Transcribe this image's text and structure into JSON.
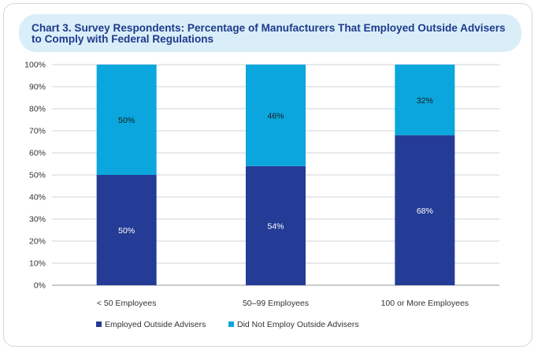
{
  "chart_data": {
    "type": "bar",
    "stacked": true,
    "title": "Chart 3. Survey Respondents: Percentage of Manufacturers That Employed Outside Advisers to Comply with Federal Regulations",
    "categories": [
      "< 50 Employees",
      "50–99 Employees",
      "100 or More Employees"
    ],
    "series": [
      {
        "name": "Employed Outside Advisers",
        "values": [
          50,
          54,
          68
        ],
        "labels": [
          "50%",
          "54%",
          "68%"
        ],
        "color": "#243c96"
      },
      {
        "name": "Did Not Employ Outside Advisers",
        "values": [
          50,
          46,
          32
        ],
        "labels": [
          "50%",
          "46%",
          "32%"
        ],
        "color": "#0ba6dd"
      }
    ],
    "yticks": [
      "0%",
      "10%",
      "20%",
      "30%",
      "40%",
      "50%",
      "60%",
      "70%",
      "80%",
      "90%",
      "100%"
    ],
    "ylim": [
      0,
      100
    ],
    "xlabel": "",
    "ylabel": "",
    "grid": true,
    "legend_position": "bottom-left"
  }
}
